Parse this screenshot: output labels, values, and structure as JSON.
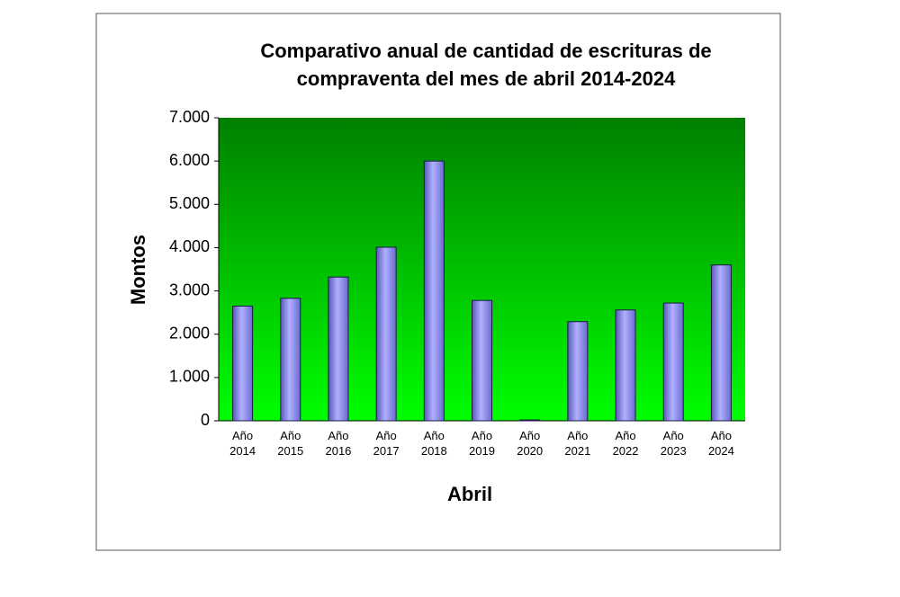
{
  "chart_data": {
    "type": "bar",
    "title": [
      "Comparativo anual de cantidad de escrituras de",
      "compraventa del mes de abril 2014-2024"
    ],
    "x_label": "Abril",
    "y_label": "Montos",
    "categories": [
      "Año 2014",
      "Año 2015",
      "Año 2016",
      "Año 2017",
      "Año 2018",
      "Año 2019",
      "Año 2020",
      "Año 2021",
      "Año 2022",
      "Año 2023",
      "Año 2024"
    ],
    "values": [
      2650,
      2830,
      3320,
      4010,
      6000,
      2780,
      20,
      2290,
      2560,
      2720,
      3600
    ],
    "color": "#8c8cf0",
    "ylim": [
      0,
      7000
    ],
    "yticks": [
      0,
      {
        "value": 1000,
        "label": "1.000"
      },
      {
        "value": 2000,
        "label": "2.000"
      },
      {
        "value": 3000,
        "label": "3.000"
      },
      {
        "value": 4000,
        "label": "4.000"
      },
      {
        "value": 5000,
        "label": "5.000"
      },
      {
        "value": 6000,
        "label": "6.000"
      },
      {
        "value": 7000,
        "label": "7.000"
      }
    ]
  }
}
